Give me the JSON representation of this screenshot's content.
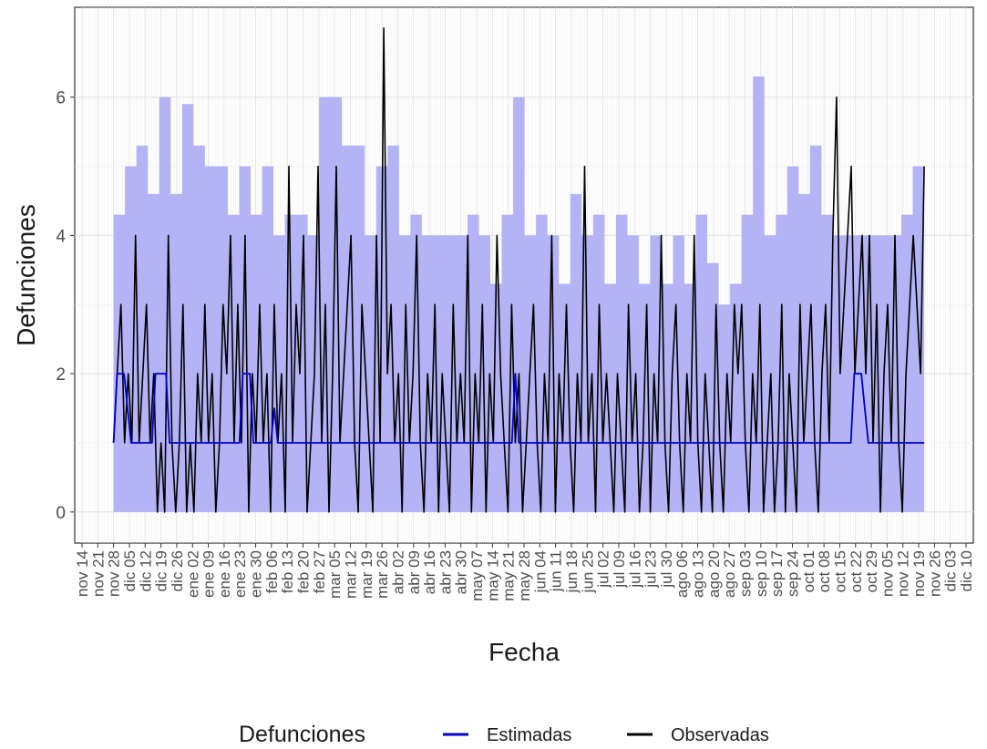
{
  "chart_data": {
    "type": "line",
    "xlabel": "Fecha",
    "ylabel": "Defunciones",
    "ylim": [
      -0.45,
      7.3
    ],
    "yticks": [
      0,
      2,
      4,
      6
    ],
    "xtick_labels": [
      "nov 14",
      "nov 21",
      "nov 28",
      "dic 05",
      "dic 12",
      "dic 19",
      "dic 26",
      "ene 02",
      "ene 09",
      "ene 16",
      "ene 23",
      "ene 30",
      "feb 06",
      "feb 13",
      "feb 20",
      "feb 27",
      "mar 05",
      "mar 12",
      "mar 19",
      "mar 26",
      "abr 02",
      "abr 09",
      "abr 16",
      "abr 23",
      "abr 30",
      "may 07",
      "may 14",
      "may 21",
      "may 28",
      "jun 04",
      "jun 11",
      "jun 18",
      "jun 25",
      "jul 02",
      "jul 09",
      "jul 16",
      "jul 23",
      "jul 30",
      "ago 06",
      "ago 13",
      "ago 20",
      "ago 27",
      "sep 03",
      "sep 10",
      "sep 17",
      "sep 24",
      "oct 01",
      "oct 08",
      "oct 15",
      "oct 22",
      "oct 29",
      "nov 05",
      "nov 12",
      "nov 19",
      "nov 26",
      "dic 03",
      "dic 10"
    ],
    "grid": true,
    "legend": {
      "title": "Defunciones",
      "position": "bottom",
      "entries": [
        {
          "label": "Estimadas",
          "color": "#0000cc"
        },
        {
          "label": "Observadas",
          "color": "#000000"
        }
      ]
    },
    "band": {
      "color": "#b3b3f5",
      "lower": 0,
      "upper_weekly": [
        4.3,
        5.0,
        5.3,
        4.6,
        6.0,
        4.6,
        5.9,
        5.3,
        5.0,
        5.0,
        4.3,
        5.0,
        4.3,
        5.0,
        4.0,
        4.3,
        4.3,
        4.0,
        6.0,
        6.0,
        5.3,
        5.3,
        4.0,
        5.0,
        5.3,
        4.0,
        4.3,
        4.0,
        4.0,
        4.0,
        4.0,
        4.3,
        4.0,
        3.3,
        4.3,
        6.0,
        4.0,
        4.3,
        4.0,
        3.3,
        4.6,
        4.0,
        4.3,
        3.3,
        4.3,
        4.0,
        3.3,
        4.0,
        3.3,
        4.0,
        3.3,
        4.3,
        3.6,
        3.0,
        3.3,
        4.3,
        6.3,
        4.0,
        4.3,
        5.0,
        4.6,
        5.3,
        4.3,
        4.0,
        4.0,
        4.0,
        4.0,
        4.0,
        4.0,
        4.3,
        5.0
      ]
    },
    "series": [
      {
        "name": "Observadas",
        "color": "#000000",
        "x_start": "nov 28",
        "x_end": "nov 19",
        "values": [
          1,
          2,
          3,
          1,
          2,
          1,
          4,
          1,
          2,
          3,
          1,
          2,
          0,
          1,
          0,
          4,
          1,
          0,
          1,
          3,
          0,
          1,
          0,
          2,
          1,
          3,
          1,
          2,
          0,
          1,
          3,
          2,
          4,
          1,
          3,
          1,
          4,
          0,
          2,
          1,
          3,
          1,
          2,
          0,
          3,
          1,
          2,
          0,
          5,
          1,
          3,
          2,
          4,
          0,
          1,
          2,
          5,
          1,
          3,
          0,
          2,
          5,
          1,
          2,
          3,
          4,
          1,
          0,
          3,
          2,
          1,
          0,
          4,
          1,
          7,
          2,
          3,
          1,
          2,
          0,
          3,
          1,
          2,
          4,
          1,
          0,
          2,
          1,
          3,
          0,
          2,
          1,
          0,
          3,
          1,
          2,
          1,
          4,
          0,
          2,
          1,
          3,
          0,
          2,
          1,
          4,
          2,
          1,
          0,
          3,
          1,
          2,
          0,
          1,
          2,
          3,
          1,
          0,
          2,
          1,
          4,
          0,
          2,
          1,
          3,
          1,
          0,
          2,
          1,
          5,
          1,
          2,
          0,
          3,
          1,
          2,
          1,
          0,
          2,
          1,
          0,
          3,
          1,
          2,
          0,
          1,
          3,
          0,
          2,
          1,
          4,
          1,
          0,
          2,
          3,
          1,
          0,
          2,
          1,
          4,
          1,
          0,
          2,
          1,
          0,
          3,
          1,
          0,
          2,
          1,
          3,
          2,
          3,
          1,
          0,
          2,
          1,
          3,
          0,
          1,
          2,
          0,
          1,
          3,
          0,
          2,
          1,
          0,
          3,
          1,
          2,
          3,
          1,
          0,
          2,
          3,
          1,
          4,
          6,
          2,
          3,
          4,
          5,
          2,
          3,
          4,
          2,
          4,
          1,
          3,
          0,
          2,
          3,
          1,
          4,
          1,
          0,
          2,
          3,
          4,
          3,
          2,
          5
        ]
      },
      {
        "name": "Estimadas",
        "color": "#0000cc",
        "x_start": "nov 28",
        "x_end": "nov 19",
        "values": [
          1,
          2,
          2,
          2,
          1.5,
          1,
          1,
          1,
          1,
          1,
          1,
          1,
          2,
          2,
          2,
          2,
          1,
          1,
          1,
          1,
          1,
          1,
          1,
          1,
          1,
          1,
          1,
          1,
          1,
          1,
          1,
          1,
          1,
          1,
          1,
          1,
          1,
          2,
          2,
          2,
          1,
          1,
          1,
          1,
          1,
          1,
          1.5,
          1,
          1,
          1,
          1,
          1,
          1,
          1,
          1,
          1,
          1,
          1,
          1,
          1,
          1,
          1,
          1,
          1,
          1,
          1,
          1,
          1,
          1,
          1,
          1,
          1,
          1,
          1,
          1,
          1,
          1,
          1,
          1,
          1,
          1,
          1,
          1,
          1,
          1,
          1,
          1,
          1,
          1,
          1,
          1,
          1,
          1,
          1,
          1,
          1,
          1,
          1,
          1,
          1,
          1,
          1,
          1,
          1,
          1,
          1,
          1,
          1,
          1,
          1,
          1,
          1,
          1,
          1,
          1,
          2,
          1,
          1,
          1,
          1,
          1,
          1,
          1,
          1,
          1,
          1,
          1,
          1,
          1,
          1,
          1,
          1,
          1,
          1,
          1,
          1,
          1,
          1,
          1,
          1,
          1,
          1,
          1,
          1,
          1,
          1,
          1,
          1,
          1,
          1,
          1,
          1,
          1,
          1,
          1,
          1,
          1,
          1,
          1,
          1,
          1,
          1,
          1,
          1,
          1,
          1,
          1,
          1,
          1,
          1,
          1,
          1,
          1,
          1,
          1,
          1,
          1,
          1,
          1,
          1,
          1,
          1,
          1,
          1,
          1,
          1,
          1,
          1,
          1,
          1,
          1,
          1,
          1,
          1,
          1,
          1,
          1,
          1,
          1,
          1,
          1,
          1,
          1,
          1,
          1,
          1,
          1,
          1,
          1,
          1,
          1,
          1,
          2,
          2,
          2,
          1.5,
          1,
          1,
          1,
          1,
          1,
          1,
          1,
          1,
          1,
          1,
          1,
          1,
          1,
          1,
          1,
          1,
          1
        ]
      }
    ]
  }
}
